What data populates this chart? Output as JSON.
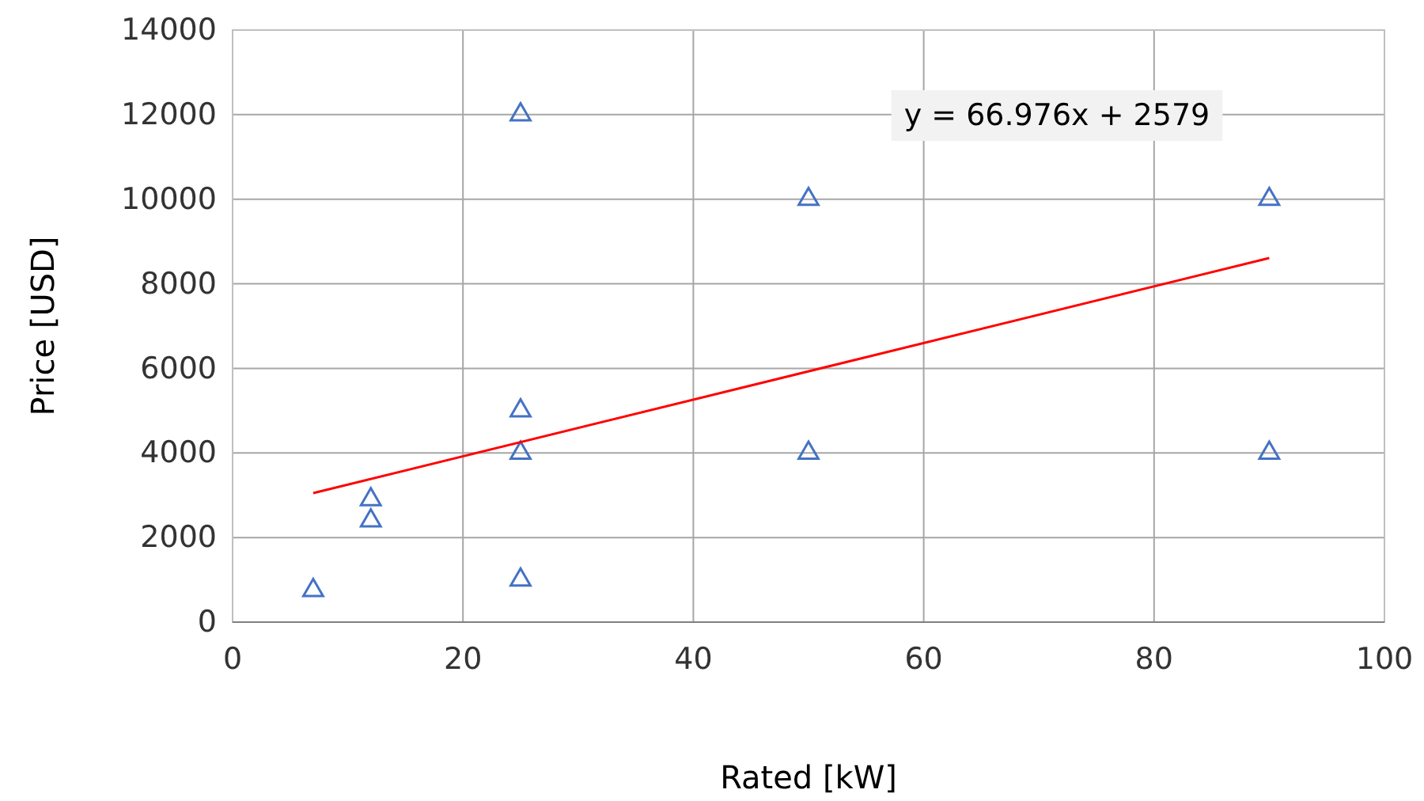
{
  "chart_data": {
    "type": "scatter",
    "xlabel": "Rated [kW]",
    "ylabel": "Price [USD]",
    "xlim": [
      0,
      100
    ],
    "xticks": [
      0,
      20,
      40,
      60,
      80,
      100
    ],
    "ylim": [
      0,
      14000
    ],
    "yticks": [
      0,
      2000,
      4000,
      6000,
      8000,
      10000,
      12000,
      14000
    ],
    "grid": true,
    "series": [
      {
        "color": "#4472c4",
        "marker": "triangle",
        "x": [
          7,
          12,
          12,
          25,
          25,
          25,
          25,
          50,
          50,
          90,
          90
        ],
        "values": [
          750,
          2900,
          2400,
          12000,
          5000,
          4000,
          1000,
          10000,
          4000,
          10000,
          4000
        ]
      },
      {
        "type": "line",
        "color": "#ff0000",
        "line_style": "solid",
        "marker": "none",
        "x": [
          7,
          90
        ],
        "values": [
          3050,
          8610
        ]
      }
    ],
    "annotations": [
      "y = 66.976x + 2579"
    ]
  }
}
